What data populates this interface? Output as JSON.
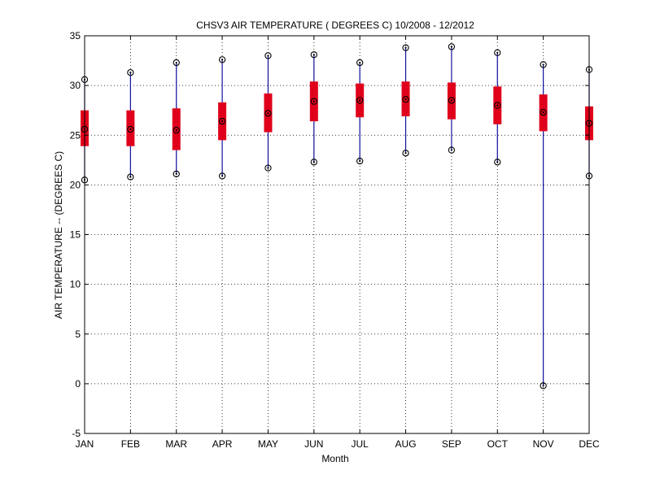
{
  "chart_data": {
    "type": "box",
    "title": "CHSV3  AIR TEMPERATURE ( DEGREES C) 10/2008 - 12/2012",
    "xlabel": "Month",
    "ylabel": "AIR TEMPERATURE -- (DEGREES C)",
    "ylim": [
      -5,
      35
    ],
    "yticks": [
      -5,
      0,
      5,
      10,
      15,
      20,
      25,
      30,
      35
    ],
    "grid": true,
    "categories": [
      "JAN",
      "FEB",
      "MAR",
      "APR",
      "MAY",
      "JUN",
      "JUL",
      "AUG",
      "SEP",
      "OCT",
      "NOV",
      "DEC"
    ],
    "min": [
      20.5,
      20.8,
      21.1,
      20.9,
      21.7,
      22.3,
      22.4,
      23.2,
      23.5,
      22.3,
      -0.2,
      20.9
    ],
    "q1": [
      23.9,
      23.9,
      23.5,
      24.5,
      25.3,
      26.4,
      26.8,
      26.9,
      26.6,
      26.1,
      25.4,
      24.5
    ],
    "median": [
      25.6,
      25.6,
      25.5,
      26.4,
      27.2,
      28.4,
      28.5,
      28.6,
      28.5,
      28.0,
      27.3,
      26.2
    ],
    "q3": [
      27.5,
      27.5,
      27.7,
      28.3,
      29.2,
      30.4,
      30.2,
      30.4,
      30.3,
      29.9,
      29.1,
      27.9
    ],
    "max": [
      30.6,
      31.3,
      32.3,
      32.6,
      33.0,
      33.1,
      32.3,
      33.8,
      33.9,
      33.3,
      32.1,
      31.6
    ],
    "colors": {
      "box": "#e0001b",
      "whisker": "#1010a0",
      "marker": "#000000",
      "grid": "#000000"
    }
  }
}
